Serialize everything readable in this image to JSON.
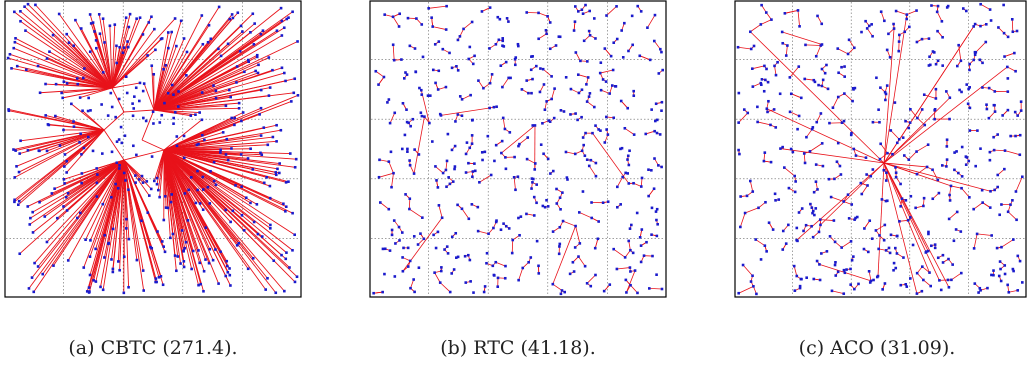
{
  "figure": {
    "panels": [
      {
        "id": "cbtc",
        "caption": "(a) CBTC (271.4).",
        "layout": "radial"
      },
      {
        "id": "rtc",
        "caption": "(b) RTC (41.18).",
        "layout": "uniform"
      },
      {
        "id": "aco",
        "caption": "(c) ACO (31.09).",
        "layout": "uniform-hub"
      }
    ],
    "colors": {
      "edge": "#e8121a",
      "node": "#1a1acc",
      "grid": "#666666",
      "frame": "#000000"
    },
    "grid": true
  }
}
